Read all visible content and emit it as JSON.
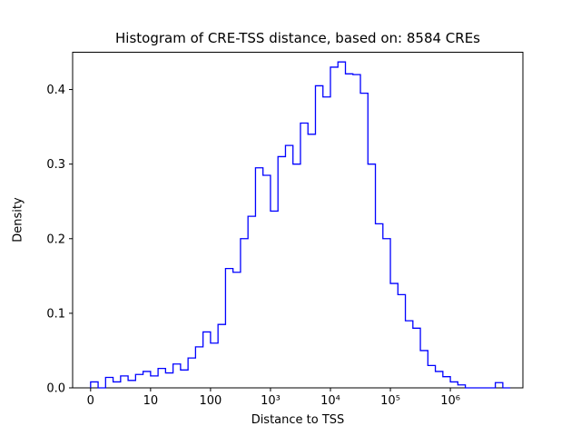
{
  "figure": {
    "background": "#ffffff",
    "axes_color": "#000000"
  },
  "chart_data": {
    "type": "histogram",
    "style": "step",
    "title": "Histogram of CRE-TSS distance, based on: 8584 CREs",
    "xlabel": "Distance to TSS",
    "ylabel": "Density",
    "line_color": "#0000ff",
    "xlim_log10": [
      -0.3,
      7.21
    ],
    "ylim": [
      0,
      0.45
    ],
    "x_tick_positions_log10": [
      0,
      1,
      2,
      3,
      4,
      5,
      6
    ],
    "x_tick_labels": [
      "0",
      "10",
      "100",
      "10³",
      "10⁴",
      "10⁵",
      "10⁶"
    ],
    "y_tick_values": [
      0.0,
      0.1,
      0.2,
      0.3,
      0.4
    ],
    "y_tick_labels": [
      "0.0",
      "0.1",
      "0.2",
      "0.3",
      "0.4"
    ],
    "bins": {
      "start_log10": 0,
      "width_log10": 0.125,
      "densities": [
        0.008,
        0.0,
        0.014,
        0.008,
        0.016,
        0.01,
        0.018,
        0.022,
        0.016,
        0.026,
        0.02,
        0.032,
        0.024,
        0.04,
        0.055,
        0.075,
        0.06,
        0.085,
        0.16,
        0.155,
        0.2,
        0.23,
        0.295,
        0.285,
        0.237,
        0.31,
        0.325,
        0.3,
        0.355,
        0.34,
        0.405,
        0.39,
        0.43,
        0.437,
        0.421,
        0.42,
        0.395,
        0.3,
        0.22,
        0.2,
        0.14,
        0.125,
        0.09,
        0.08,
        0.05,
        0.03,
        0.022,
        0.015,
        0.008,
        0.004,
        0.0,
        0.0,
        0.0,
        0.0,
        0.007,
        0.0
      ]
    }
  }
}
